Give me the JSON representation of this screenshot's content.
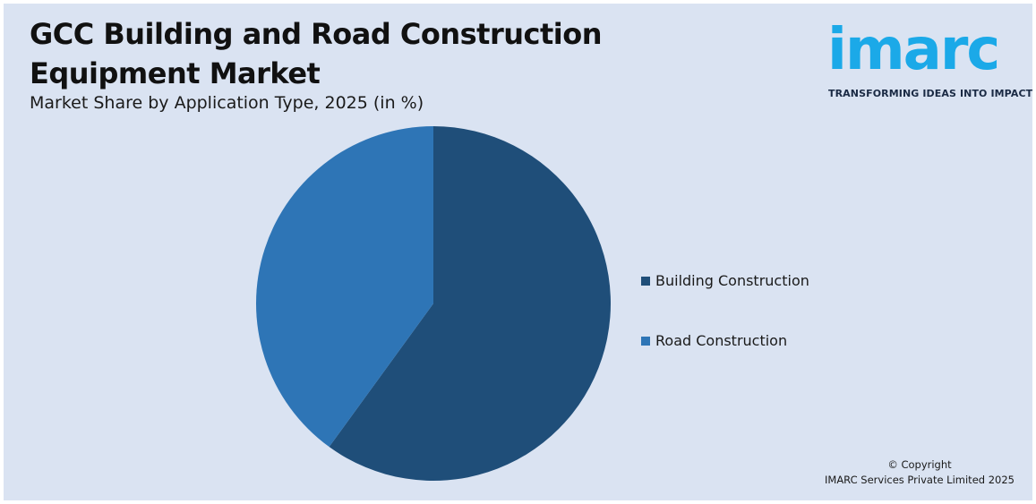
{
  "header": {
    "title_line1": "GCC Building and Road Construction",
    "title_line2": "Equipment Market",
    "subtitle": "Market Share by Application Type, 2025 (in %)"
  },
  "logo": {
    "wordmark": "imarc",
    "tagline": "TRANSFORMING IDEAS INTO IMPACT",
    "color": "#1ba9e8"
  },
  "chart_data": {
    "type": "pie",
    "title": "Market Share by Application Type, 2025 (in %)",
    "categories": [
      "Building Construction",
      "Road Construction"
    ],
    "values": [
      60,
      40
    ],
    "colors": [
      "#1f4e79",
      "#2e75b6"
    ],
    "legend": "right"
  },
  "footer": {
    "copyright_line1": "© Copyright",
    "copyright_line2": "IMARC Services Private Limited 2025"
  }
}
